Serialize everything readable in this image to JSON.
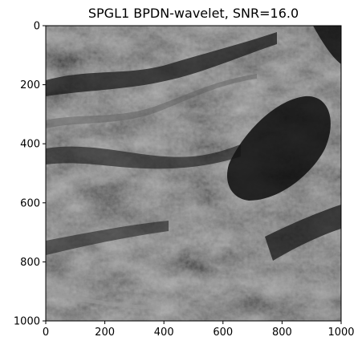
{
  "figure": {
    "title": "SPGL1 BPDN-wavelet, SNR=16.0"
  },
  "axes": {
    "x_ticks": [
      "0",
      "200",
      "400",
      "600",
      "800",
      "1000"
    ],
    "y_ticks": [
      "0",
      "200",
      "400",
      "600",
      "800",
      "1000"
    ],
    "x_range": [
      0,
      1000
    ],
    "y_range": [
      0,
      1000
    ],
    "y_inverted": true
  },
  "image": {
    "description_colormap": "gray",
    "background_color": "#2a2a2a"
  },
  "colors": {
    "frame": "#000000",
    "page_background": "#ffffff"
  }
}
